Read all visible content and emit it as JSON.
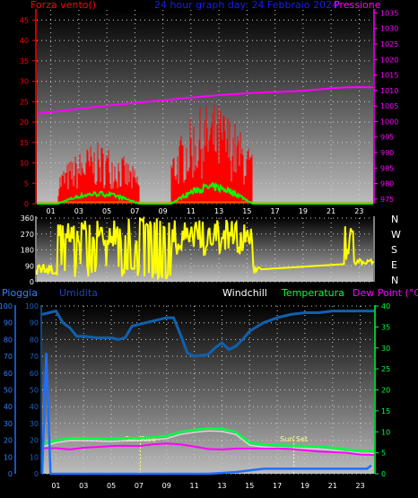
{
  "chart_data": [
    {
      "type": "line",
      "title": "24 hour graph day:  24 Febbraio 2024",
      "left_label": "Forza vento()",
      "right_label": "Pressione",
      "x_ticks": [
        "01",
        "03",
        "05",
        "07",
        "09",
        "11",
        "13",
        "15",
        "17",
        "19",
        "21",
        "23"
      ],
      "y_left_ticks": [
        "0",
        "5",
        "10",
        "15",
        "20",
        "25",
        "30",
        "35",
        "40",
        "45"
      ],
      "y_left_range": [
        0,
        47.5
      ],
      "y_right_ticks": [
        "975",
        "980",
        "985",
        "990",
        "995",
        "1000",
        "1005",
        "1010",
        "1015",
        "1020",
        "1025",
        "1030",
        "1035"
      ],
      "y_right_range": [
        973.5,
        1036
      ],
      "x_range": [
        0,
        24
      ],
      "colors": {
        "wind_gust": "#ff0000",
        "wind_avg": "#00ff00",
        "pressure": "#ff00ff",
        "title": "#1a1aff",
        "left_axis": "#ff0000",
        "right_axis": "#ff00ff"
      },
      "series": [
        {
          "name": "Pressione",
          "x": [
            0,
            1,
            2,
            3,
            4,
            5,
            6,
            7,
            8,
            9,
            10,
            11,
            12,
            13,
            14,
            15,
            16,
            17,
            18,
            19,
            20,
            21,
            22,
            23,
            24
          ],
          "values": [
            1002.5,
            1003,
            1003.6,
            1004.1,
            1004.6,
            1005.1,
            1005.6,
            1006,
            1006.4,
            1006.8,
            1007.3,
            1007.7,
            1008.1,
            1008.5,
            1008.8,
            1009.1,
            1009.3,
            1009.5,
            1009.7,
            1009.9,
            1010.3,
            1010.7,
            1011,
            1011.1,
            1011.0
          ]
        }
      ],
      "wind_bursts": [
        {
          "start": 1.5,
          "end": 7.3,
          "peak": 15,
          "avg_peak": 3
        },
        {
          "start": 9.6,
          "end": 15.4,
          "peak": 25,
          "avg_peak": 5
        }
      ]
    },
    {
      "type": "line",
      "title": "",
      "y_left_ticks": [
        "0",
        "90",
        "180",
        "270",
        "360"
      ],
      "y_left_range": [
        0,
        360
      ],
      "compass": [
        "N",
        "W",
        "S",
        "E",
        "N"
      ],
      "x_range": [
        0,
        24
      ],
      "colors": {
        "direction": "#ffff00",
        "axis": "#ffffff"
      }
    },
    {
      "type": "line",
      "labels": {
        "rain": "Pioggia",
        "humidity": "Umidita",
        "windchill": "Windchill",
        "temperature": "Temperatura",
        "dewpoint": "Dew Point (°C)"
      },
      "y_left_ticks": [
        "0",
        "10",
        "20",
        "30",
        "40",
        "50",
        "60",
        "70",
        "80",
        "90",
        "100"
      ],
      "y_left_range": [
        0,
        100
      ],
      "y_right_ticks": [
        "0",
        "5",
        "10",
        "15",
        "20",
        "25",
        "30",
        "35",
        "40"
      ],
      "y_right_range": [
        0,
        40
      ],
      "x_ticks": [
        "01",
        "03",
        "05",
        "07",
        "09",
        "11",
        "13",
        "15",
        "17",
        "19",
        "21",
        "23"
      ],
      "x_range": [
        0,
        24
      ],
      "annotations": [
        {
          "text": "Sun Rise",
          "x": 7.1
        },
        {
          "text": "Sun Set",
          "x": 18.2
        }
      ],
      "colors": {
        "rain": "#1e6fff",
        "humidity": "#1060b0",
        "windchill": "#ffffff",
        "temperature": "#00ff40",
        "dewpoint": "#ff00ff",
        "rain_label": "#3080ff",
        "humidity_label": "#2040c0"
      },
      "series": [
        {
          "name": "Umidita",
          "x": [
            0,
            0.5,
            1,
            1.5,
            2,
            2.5,
            3,
            4,
            5,
            5.5,
            6,
            6.5,
            7,
            8,
            9,
            9.5,
            10,
            10.5,
            11,
            12,
            12.5,
            13,
            13.5,
            14,
            14.5,
            15,
            16,
            17,
            18,
            19,
            20,
            21,
            22,
            23,
            24
          ],
          "values": [
            95,
            96,
            97,
            90,
            87,
            82,
            82,
            81,
            81,
            80,
            81,
            88,
            89,
            91,
            93,
            93,
            83,
            72,
            70,
            71,
            75,
            78,
            74,
            76,
            80,
            85,
            90,
            93,
            95,
            96,
            96,
            97,
            97,
            97,
            97
          ]
        },
        {
          "name": "Temperatura",
          "x": [
            0,
            1,
            2,
            3,
            4,
            5,
            6,
            7,
            8,
            9,
            10,
            11,
            12,
            13,
            14,
            15,
            16,
            17,
            18,
            19,
            20,
            21,
            22,
            23,
            24
          ],
          "values": [
            7,
            8,
            8.5,
            8.5,
            8.4,
            8.3,
            8.5,
            8.5,
            8.7,
            9,
            10,
            10.5,
            10.8,
            10.7,
            10,
            7.4,
            7,
            6.8,
            6.7,
            6.6,
            6.5,
            6.2,
            5.8,
            5.5,
            5.4
          ]
        },
        {
          "name": "Dew Point (°C)",
          "x": [
            0,
            1,
            2,
            3,
            4,
            5,
            6,
            7,
            8,
            9,
            10,
            11,
            12,
            13,
            14,
            15,
            16,
            17,
            18,
            19,
            20,
            21,
            22,
            23,
            24
          ],
          "values": [
            6.1,
            6.1,
            5.8,
            6.2,
            6.4,
            6.6,
            6.7,
            6.6,
            7,
            7.2,
            7,
            6.5,
            5.9,
            5.8,
            6,
            6,
            6,
            6,
            5.9,
            5.6,
            5.3,
            5.2,
            5,
            4.6,
            4.5
          ]
        },
        {
          "name": "Pioggia",
          "x": [
            0,
            0.3,
            0.6,
            1,
            2,
            4,
            6,
            8,
            10,
            12,
            14,
            16,
            18,
            20,
            22,
            23.5,
            23.8
          ],
          "values": [
            0,
            72,
            0,
            0,
            0,
            0,
            0,
            0,
            0,
            0,
            1,
            3,
            3,
            3,
            3,
            3,
            5
          ]
        }
      ]
    }
  ]
}
